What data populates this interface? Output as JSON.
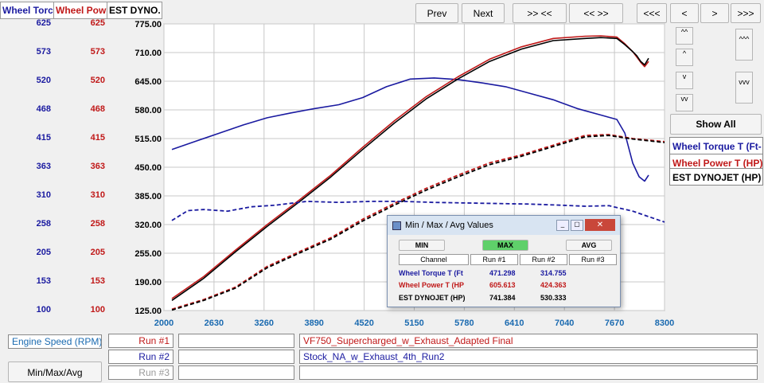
{
  "axis_headers": {
    "torque": "Wheel Torc",
    "power": "Wheel Pow",
    "dyno": "EST DYNO."
  },
  "torque_ticks": [
    "625",
    "573",
    "520",
    "468",
    "415",
    "363",
    "310",
    "258",
    "205",
    "153",
    "100"
  ],
  "power_ticks": [
    "625",
    "573",
    "520",
    "468",
    "415",
    "363",
    "310",
    "258",
    "205",
    "153",
    "100"
  ],
  "toolbar": {
    "prev": "Prev",
    "next": "Next",
    "zoom_in": ">> <<",
    "zoom_out": "<< >>",
    "first": "<<<",
    "left": "<",
    "right": ">",
    "last": ">>>"
  },
  "side_buttons": {
    "up_fast": "^^",
    "down_fast": "vv",
    "up": "^",
    "down": "v",
    "up_page": "^^^",
    "down_page": "vvv",
    "show_all": "Show All"
  },
  "legend": [
    "Wheel Torque T (Ft-",
    "Wheel Power T (HP)",
    "EST DYNOJET (HP)"
  ],
  "bottom": {
    "xaxis_label": "Engine Speed (RPM)",
    "min_max_avg": "Min/Max/Avg",
    "runs": [
      {
        "label": "Run #1",
        "name": "VF750_Supercharged_w_Exhaust_Adapted  Final"
      },
      {
        "label": "Run #2",
        "name": "Stock_NA_w_Exhaust_4th_Run2"
      },
      {
        "label": "Run #3",
        "name": ""
      }
    ]
  },
  "minmax": {
    "title": "Min / Max / Avg Values",
    "modes": [
      "MIN",
      "MAX",
      "AVG"
    ],
    "headers": [
      "Channel",
      "Run #1",
      "Run #2",
      "Run #3"
    ],
    "rows": [
      {
        "channel": "Wheel Torque T (Ft",
        "run1": "471.298",
        "run2": "314.755",
        "run3": "",
        "color": "#1a1aa0"
      },
      {
        "channel": "Wheel Power T (HP",
        "run1": "605.613",
        "run2": "424.363",
        "run3": "",
        "color": "#c01818"
      },
      {
        "channel": "EST DYNOJET (HP)",
        "run1": "741.384",
        "run2": "530.333",
        "run3": "",
        "color": "#000000"
      }
    ]
  },
  "colors": {
    "torque": "#1a1aa0",
    "power": "#c01818",
    "dyno": "#000000",
    "grid": "#c8c8c8",
    "xtick": "#1a6ab0"
  },
  "chart_data": {
    "type": "line",
    "xlabel": "Engine Speed (RPM)",
    "xlim": [
      2000,
      8300
    ],
    "x_ticks": [
      "2000",
      "2630",
      "3260",
      "3890",
      "4520",
      "5150",
      "5780",
      "6410",
      "7040",
      "7670",
      "8300"
    ],
    "y_ticks": [
      "775.00",
      "710.00",
      "645.00",
      "580.00",
      "515.00",
      "450.00",
      "385.00",
      "320.00",
      "255.00",
      "190.00",
      "125.00"
    ],
    "ylim": [
      125,
      775
    ],
    "grid": true,
    "series": [
      {
        "name": "Wheel Torque T (Ft-",
        "run": "Run #1",
        "scale": "torque",
        "style": "solid",
        "color": "#1a1aa0",
        "x": [
          2100,
          2400,
          2700,
          3000,
          3300,
          3600,
          3900,
          4200,
          4500,
          4800,
          5100,
          5400,
          5700,
          6000,
          6300,
          6600,
          6900,
          7200,
          7500,
          7700,
          7800,
          7900,
          7980,
          8050,
          8100
        ],
        "y": [
          395,
          410,
          425,
          440,
          453,
          462,
          470,
          477,
          490,
          510,
          524,
          526,
          523,
          517,
          510,
          498,
          486,
          470,
          458,
          450,
          425,
          370,
          345,
          337,
          348
        ]
      },
      {
        "name": "Wheel Power T (HP)",
        "run": "Run #1",
        "scale": "dyno",
        "style": "solid",
        "color": "#c01818",
        "x": [
          2100,
          2500,
          2900,
          3300,
          3700,
          4100,
          4500,
          4900,
          5300,
          5700,
          6100,
          6500,
          6900,
          7300,
          7500,
          7700,
          7800,
          7900,
          7950,
          8000,
          8050,
          8100
        ],
        "y": [
          152,
          202,
          262,
          320,
          375,
          432,
          495,
          555,
          610,
          655,
          695,
          723,
          742,
          747,
          748,
          745,
          730,
          712,
          700,
          688,
          678,
          690
        ]
      },
      {
        "name": "EST DYNOJET (HP)",
        "run": "Run #1",
        "scale": "dyno",
        "style": "solid",
        "color": "#000000",
        "x": [
          2100,
          2500,
          2900,
          3300,
          3700,
          4100,
          4500,
          4900,
          5300,
          5700,
          6100,
          6500,
          6900,
          7300,
          7500,
          7700,
          7800,
          7900,
          7950,
          8000,
          8050,
          8100
        ],
        "y": [
          148,
          198,
          258,
          316,
          371,
          428,
          490,
          550,
          605,
          650,
          690,
          718,
          737,
          742,
          744,
          742,
          728,
          712,
          703,
          690,
          682,
          697
        ]
      },
      {
        "name": "Wheel Power T (HP)",
        "run": "Run #2",
        "scale": "dyno",
        "style": "dashed",
        "color": "#c01818",
        "x": [
          2100,
          2500,
          2900,
          3300,
          3700,
          4100,
          4500,
          4900,
          5300,
          5700,
          6100,
          6500,
          6900,
          7300,
          7600,
          7900,
          8300
        ],
        "y": [
          128,
          150,
          178,
          225,
          258,
          290,
          332,
          368,
          402,
          432,
          460,
          478,
          500,
          522,
          524,
          515,
          508
        ]
      },
      {
        "name": "EST DYNOJET (HP)",
        "run": "Run #2",
        "scale": "dyno",
        "style": "dashed",
        "color": "#000000",
        "x": [
          2100,
          2500,
          2900,
          3300,
          3700,
          4100,
          4500,
          4900,
          5300,
          5700,
          6100,
          6500,
          6900,
          7300,
          7600,
          7900,
          8300
        ],
        "y": [
          126,
          148,
          176,
          222,
          255,
          287,
          328,
          364,
          398,
          428,
          456,
          475,
          497,
          519,
          522,
          514,
          506
        ]
      },
      {
        "name": "Wheel Torque T (Ft-",
        "run": "Run #2",
        "scale": "torque",
        "style": "dashed",
        "color": "#1a1aa0",
        "x": [
          2100,
          2300,
          2500,
          2800,
          3100,
          3400,
          3800,
          4200,
          4600,
          5000,
          5400,
          5800,
          6200,
          6600,
          7000,
          7300,
          7600,
          7900,
          8300
        ],
        "y": [
          265,
          283,
          285,
          282,
          290,
          293,
          300,
          298,
          300,
          300,
          298,
          297,
          296,
          295,
          293,
          291,
          292,
          282,
          262
        ]
      }
    ]
  }
}
